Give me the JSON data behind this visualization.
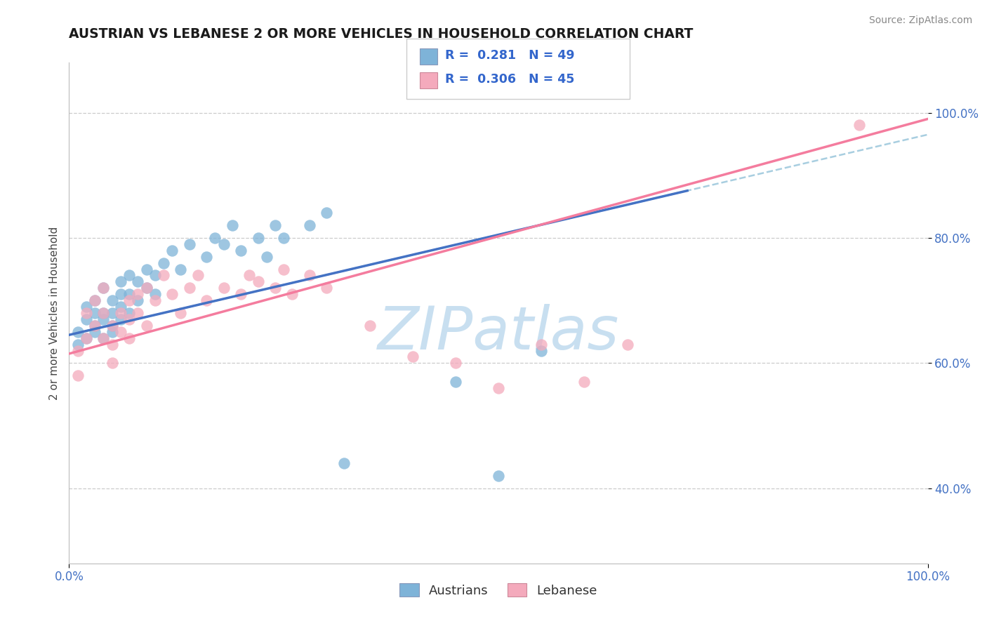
{
  "title": "AUSTRIAN VS LEBANESE 2 OR MORE VEHICLES IN HOUSEHOLD CORRELATION CHART",
  "source": "Source: ZipAtlas.com",
  "ylabel": "2 or more Vehicles in Household",
  "r_austrians": "0.281",
  "n_austrians": "49",
  "r_lebanese": "0.306",
  "n_lebanese": "45",
  "blue_color": "#7EB3D8",
  "pink_color": "#F4AABC",
  "blue_line_color": "#4472C4",
  "pink_line_color": "#F47C9E",
  "dashed_line_color": "#A8CEE0",
  "watermark_color": "#D0E8F0",
  "axis_tick_color": "#4472C4",
  "title_color": "#1a1a1a",
  "austrians_x": [
    0.01,
    0.01,
    0.02,
    0.02,
    0.02,
    0.03,
    0.03,
    0.03,
    0.03,
    0.04,
    0.04,
    0.04,
    0.04,
    0.05,
    0.05,
    0.05,
    0.05,
    0.06,
    0.06,
    0.06,
    0.06,
    0.07,
    0.07,
    0.07,
    0.08,
    0.08,
    0.09,
    0.09,
    0.1,
    0.1,
    0.11,
    0.12,
    0.13,
    0.14,
    0.16,
    0.17,
    0.18,
    0.19,
    0.2,
    0.22,
    0.23,
    0.24,
    0.25,
    0.28,
    0.3,
    0.32,
    0.45,
    0.5,
    0.55
  ],
  "austrians_y": [
    0.65,
    0.63,
    0.67,
    0.64,
    0.69,
    0.66,
    0.68,
    0.7,
    0.65,
    0.67,
    0.64,
    0.68,
    0.72,
    0.66,
    0.68,
    0.7,
    0.65,
    0.67,
    0.69,
    0.71,
    0.73,
    0.68,
    0.71,
    0.74,
    0.7,
    0.73,
    0.72,
    0.75,
    0.74,
    0.71,
    0.76,
    0.78,
    0.75,
    0.79,
    0.77,
    0.8,
    0.79,
    0.82,
    0.78,
    0.8,
    0.77,
    0.82,
    0.8,
    0.82,
    0.84,
    0.44,
    0.57,
    0.42,
    0.62
  ],
  "lebanese_x": [
    0.01,
    0.01,
    0.02,
    0.02,
    0.03,
    0.03,
    0.04,
    0.04,
    0.04,
    0.05,
    0.05,
    0.05,
    0.06,
    0.06,
    0.07,
    0.07,
    0.07,
    0.08,
    0.08,
    0.09,
    0.09,
    0.1,
    0.11,
    0.12,
    0.13,
    0.14,
    0.15,
    0.16,
    0.18,
    0.2,
    0.21,
    0.22,
    0.24,
    0.25,
    0.26,
    0.28,
    0.3,
    0.35,
    0.4,
    0.45,
    0.5,
    0.55,
    0.6,
    0.65,
    0.92
  ],
  "lebanese_y": [
    0.62,
    0.58,
    0.68,
    0.64,
    0.7,
    0.66,
    0.72,
    0.68,
    0.64,
    0.66,
    0.63,
    0.6,
    0.68,
    0.65,
    0.7,
    0.67,
    0.64,
    0.71,
    0.68,
    0.66,
    0.72,
    0.7,
    0.74,
    0.71,
    0.68,
    0.72,
    0.74,
    0.7,
    0.72,
    0.71,
    0.74,
    0.73,
    0.72,
    0.75,
    0.71,
    0.74,
    0.72,
    0.66,
    0.61,
    0.6,
    0.56,
    0.63,
    0.57,
    0.63,
    0.98
  ],
  "xlim": [
    0.0,
    1.0
  ],
  "ylim": [
    0.28,
    1.08
  ],
  "yticks": [
    0.4,
    0.6,
    0.8,
    1.0
  ],
  "xticks": [
    0.0,
    1.0
  ]
}
